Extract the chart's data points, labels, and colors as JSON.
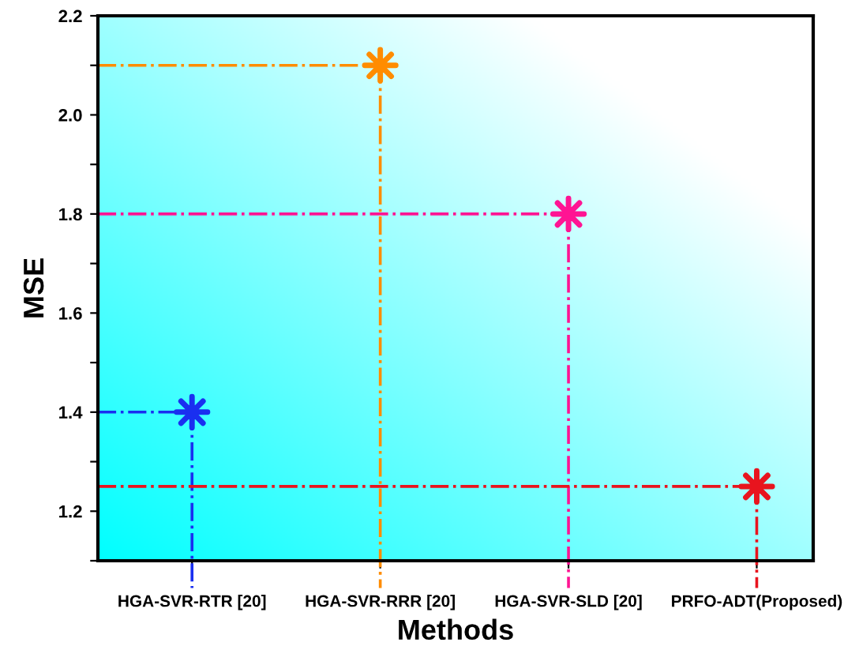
{
  "chart_data": {
    "type": "scatter",
    "xlabel": "Methods",
    "ylabel": "MSE",
    "categories": [
      "HGA-SVR-RTR [20]",
      "HGA-SVR-RRR [20]",
      "HGA-SVR-SLD [20]",
      "PRFO-ADT(Proposed)"
    ],
    "values": [
      1.4,
      2.1,
      1.8,
      1.25
    ],
    "colors": [
      "#1a2ff0",
      "#ff8c00",
      "#ff1493",
      "#e8141e"
    ],
    "marker": "cross",
    "ref_lines": [
      {
        "axis": "y",
        "value": 1.4,
        "color": "#1a2ff0",
        "line_style": "dashdot"
      },
      {
        "axis": "x",
        "value": "HGA-SVR-RTR [20]",
        "color": "#1a2ff0",
        "line_style": "dashdot"
      },
      {
        "axis": "y",
        "value": 2.1,
        "color": "#ff8c00",
        "line_style": "dashdot"
      },
      {
        "axis": "x",
        "value": "HGA-SVR-RRR [20]",
        "color": "#ff8c00",
        "line_style": "dashdot"
      },
      {
        "axis": "y",
        "value": 1.8,
        "color": "#ff1493",
        "line_style": "dashdot"
      },
      {
        "axis": "x",
        "value": "HGA-SVR-SLD [20]",
        "color": "#ff1493",
        "line_style": "dashdot"
      },
      {
        "axis": "y",
        "value": 1.25,
        "color": "#e8141e",
        "line_style": "dashdot"
      },
      {
        "axis": "x",
        "value": "PRFO-ADT(Proposed)",
        "color": "#e8141e",
        "line_style": "dashdot"
      }
    ],
    "ylim": [
      1.1,
      2.2
    ],
    "yticks": [
      {
        "value": 1.1,
        "label": null
      },
      1.2,
      {
        "value": 1.3,
        "label": null
      },
      1.4,
      {
        "value": 1.5,
        "label": null
      },
      1.6,
      {
        "value": 1.7,
        "label": null
      },
      1.8,
      {
        "value": 1.9,
        "label": null
      },
      {
        "value": 2.0,
        "label": "2.0"
      },
      {
        "value": 2.1,
        "label": null
      },
      2.2
    ],
    "grid": false,
    "legend": false
  }
}
